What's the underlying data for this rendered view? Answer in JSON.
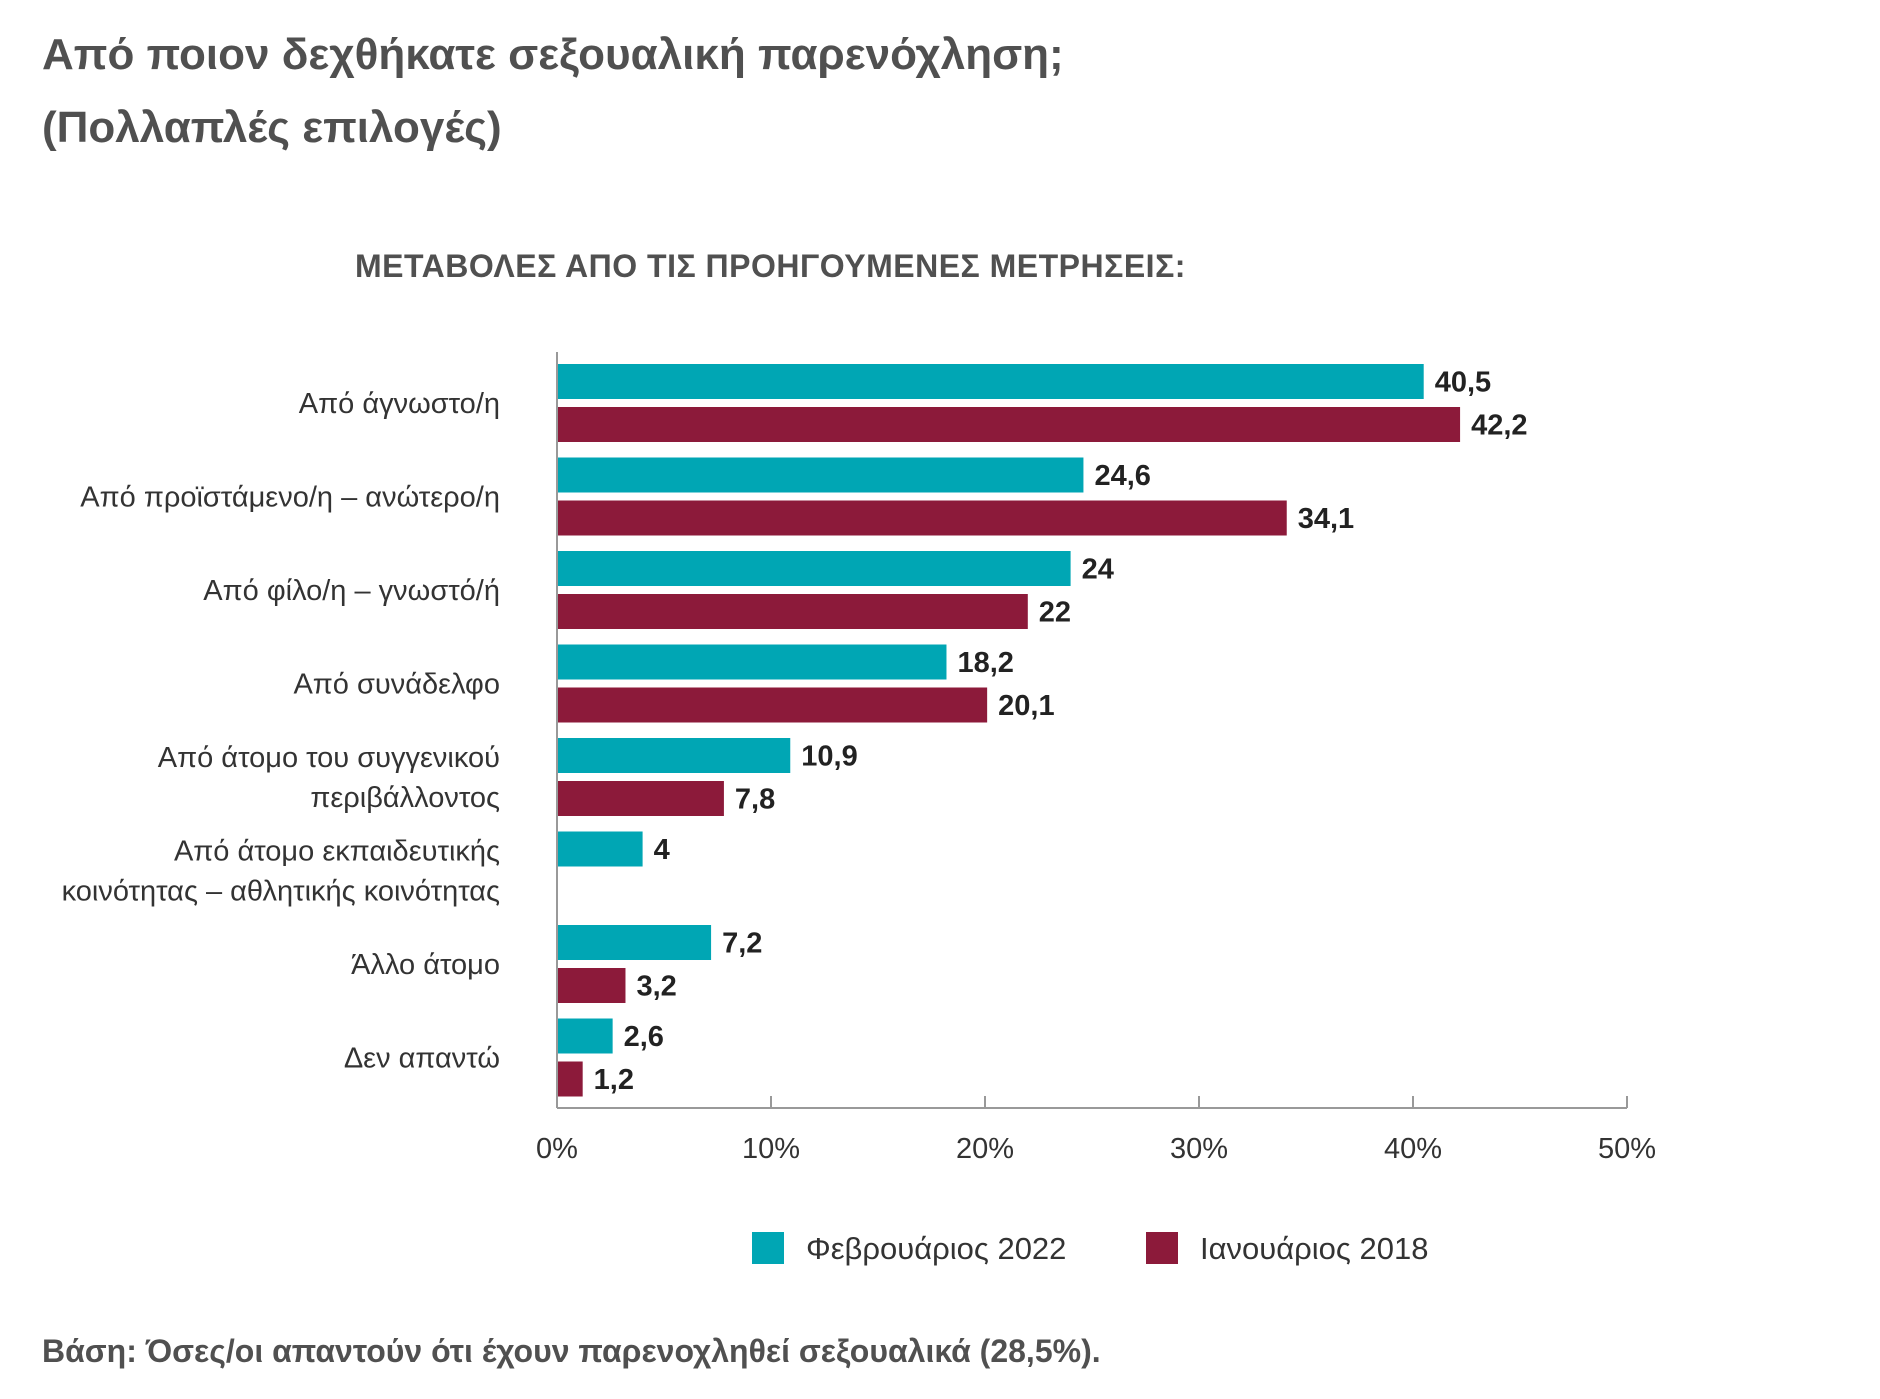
{
  "title_line1": "Από ποιον δεχθήκατε σεξουαλική παρενόχληση;",
  "title_line2": "(Πολλαπλές επιλογές)",
  "subtitle": "ΜΕΤΑΒΟΛΕΣ ΑΠΟ ΤΙΣ ΠΡΟΗΓΟΥΜΕΝΕΣ ΜΕΤΡΗΣΕΙΣ:",
  "footnote": "Βάση: Όσες/οι απαντούν ότι έχουν παρενοχληθεί σεξουαλικά (28,5%).",
  "chart_data": {
    "type": "bar",
    "orientation": "horizontal",
    "categories": [
      [
        "Από άγνωστο/η"
      ],
      [
        "Από προϊστάμενο/η – ανώτερο/η"
      ],
      [
        "Από φίλο/η – γνωστό/ή"
      ],
      [
        "Από συνάδελφο"
      ],
      [
        "Από άτομο του συγγενικού",
        "περιβάλλοντος"
      ],
      [
        "Από άτομο εκπαιδευτικής",
        "κοινότητας – αθλητικής κοινότητας"
      ],
      [
        "Άλλο άτομο"
      ],
      [
        "Δεν απαντώ"
      ]
    ],
    "series": [
      {
        "name": "Φεβρουάριος 2022",
        "color": "#00a6b4",
        "values": [
          40.5,
          24.6,
          24,
          18.2,
          10.9,
          4,
          7.2,
          2.6
        ],
        "labels": [
          "40,5",
          "24,6",
          "24",
          "18,2",
          "10,9",
          "4",
          "7,2",
          "2,6"
        ]
      },
      {
        "name": "Ιανουάριος 2018",
        "color": "#8c1a3a",
        "values": [
          42.2,
          34.1,
          22,
          20.1,
          7.8,
          null,
          3.2,
          1.2
        ],
        "labels": [
          "42,2",
          "34,1",
          "22",
          "20,1",
          "7,8",
          null,
          "3,2",
          "1,2"
        ]
      }
    ],
    "xlim": [
      0,
      50
    ],
    "xticks": [
      0,
      10,
      20,
      30,
      40,
      50
    ],
    "xtick_labels": [
      "0%",
      "10%",
      "20%",
      "30%",
      "40%",
      "50%"
    ],
    "grid": false,
    "legend_position": "bottom-center",
    "axis_color": "#999999"
  }
}
